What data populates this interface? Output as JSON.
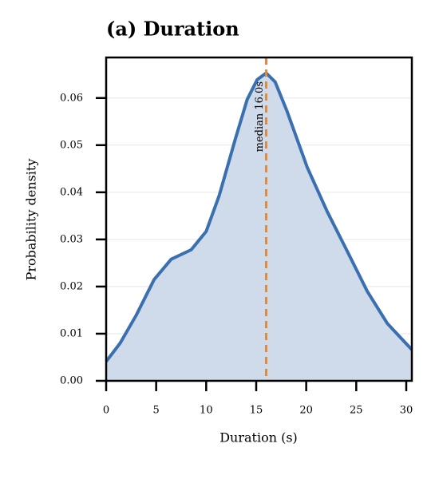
{
  "chart_data": {
    "type": "area-line",
    "title": "(a) Duration",
    "xlabel": "Duration (s)",
    "ylabel": "Probability density",
    "x": [
      0,
      1.4,
      3,
      4.8,
      6.5,
      8.5,
      10,
      11.3,
      12.9,
      14.1,
      15.1,
      16,
      16.9,
      18.1,
      20.1,
      22.1,
      24.1,
      26.1,
      28.1,
      30.56
    ],
    "series": [
      {
        "name": "Duration",
        "color": "#3a70b0",
        "fill": "#cfdbeb",
        "values": [
          0.0041,
          0.008,
          0.0139,
          0.0215,
          0.0258,
          0.0278,
          0.0317,
          0.0393,
          0.0512,
          0.0597,
          0.0639,
          0.0653,
          0.0634,
          0.0571,
          0.0453,
          0.0359,
          0.0275,
          0.019,
          0.0122,
          0.0066
        ]
      }
    ],
    "median": {
      "value": 16,
      "label": "median 16.0s",
      "color": "#e08a3c"
    },
    "xlim": [
      0,
      30.56
    ],
    "ylim": [
      0,
      0.0686
    ],
    "xticks": [
      0,
      5,
      10,
      15,
      20,
      25,
      30
    ],
    "yticks": [
      {
        "value": 0,
        "label": "0.00"
      },
      {
        "value": 0.01,
        "label": "0.01"
      },
      {
        "value": 0.02,
        "label": "0.02"
      },
      {
        "value": 0.03,
        "label": "0.03"
      },
      {
        "value": 0.04,
        "label": "0.04"
      },
      {
        "value": 0.05,
        "label": "0.05"
      },
      {
        "value": 0.06,
        "label": "0.06"
      }
    ],
    "grid": true
  }
}
